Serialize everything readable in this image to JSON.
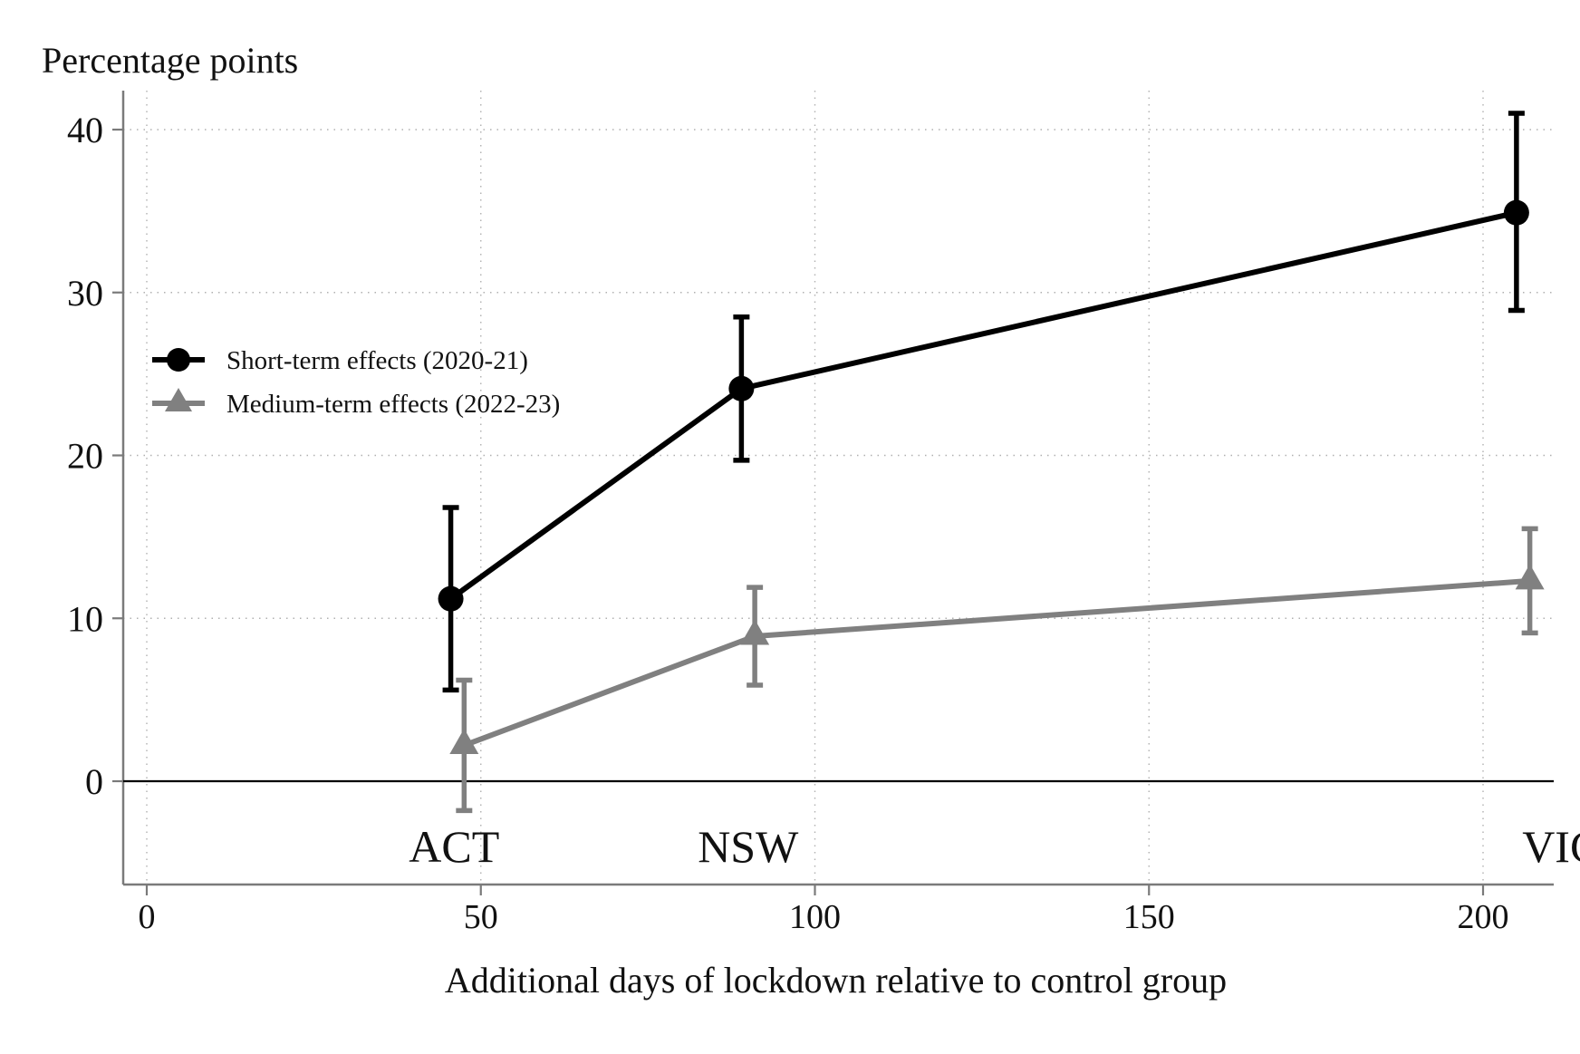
{
  "chart_data": {
    "type": "line",
    "ylabel": "Percentage points",
    "xlabel": "Additional days of lockdown relative to control group",
    "xlim": [
      -3.5,
      210
    ],
    "ylim": [
      -6.3,
      42.5
    ],
    "x_ticks": [
      0,
      50,
      100,
      150,
      200
    ],
    "y_ticks": [
      0,
      10,
      20,
      30,
      40
    ],
    "grid": true,
    "legend_position": "left-middle",
    "reference_line_y": 0,
    "point_labels": [
      {
        "text": "ACT",
        "x": 46
      },
      {
        "text": "NSW",
        "x": 90
      },
      {
        "text": "VIC",
        "x": 206
      }
    ],
    "series": [
      {
        "name": "Short-term effects (2020-21)",
        "color": "#000000",
        "marker": "circle",
        "points": [
          {
            "x": 45.5,
            "y": 11.2,
            "low": 5.6,
            "high": 16.8
          },
          {
            "x": 89.0,
            "y": 24.1,
            "low": 19.7,
            "high": 28.5
          },
          {
            "x": 205.0,
            "y": 34.9,
            "low": 28.9,
            "high": 41.0
          }
        ]
      },
      {
        "name": "Medium-term effects (2022-23)",
        "color": "#808080",
        "marker": "triangle",
        "points": [
          {
            "x": 47.5,
            "y": 2.2,
            "low": -1.8,
            "high": 6.2
          },
          {
            "x": 91.0,
            "y": 8.9,
            "low": 5.9,
            "high": 11.9
          },
          {
            "x": 207.0,
            "y": 12.3,
            "low": 9.1,
            "high": 15.5
          }
        ]
      }
    ]
  }
}
